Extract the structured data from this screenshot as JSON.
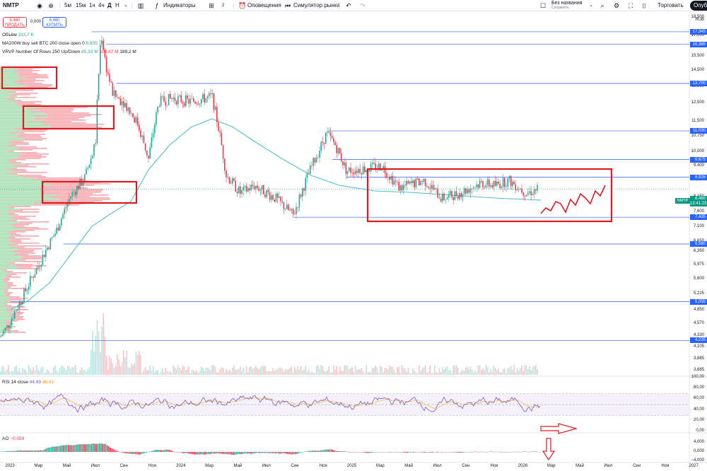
{
  "toolbar": {
    "symbol": "NMTP",
    "intervals": [
      "5м",
      "15м",
      "1ч",
      "4ч",
      "Д",
      "Н"
    ],
    "active_interval": "Д",
    "indicators_label": "Индикаторы",
    "layouts_count": "2",
    "alerts_label": "Оповещения",
    "replay_label": "Симулятор рынка",
    "layout_name": "Без названия",
    "layout_status": "Сохранить",
    "trade_label": "Торговать",
    "publish_label": "Опублик"
  },
  "trade": {
    "sell_price": "8,460",
    "sell_label": "ПРОДАТЬ",
    "spread": "0,000",
    "buy_price": "8,460",
    "buy_label": "КУПИТЬ"
  },
  "legends": {
    "volume_label": "Объём",
    "volume_value": "333,7 K",
    "ma_label": "MA200W buy sell BTC 200 close open 0",
    "ma_value": "8,605",
    "vrvp_label": "VRVP Number Of Rows 250 Up/Down",
    "vrvp_up": "85,33 M",
    "vrvp_down": "103,87 M",
    "vrvp_total": "189,2 M",
    "rsi_label": "RSI 14 close",
    "rsi_value": "44,89",
    "rsi_ma": "48,43",
    "ao_label": "AO",
    "ao_value": "−0,059"
  },
  "price_axis": {
    "currency": "RUB",
    "labels": [
      "18,500",
      "17,000",
      "15,500",
      "14,500",
      "13,500",
      "12,500",
      "11,500",
      "10,750",
      "10,000",
      "9,400",
      "8,800",
      "8,150",
      "7,600",
      "7,100",
      "6,650",
      "6,350",
      "5,975",
      "5,600",
      "5,225",
      "4,850",
      "4,570",
      "4,330",
      "4,105",
      "3,885",
      "3,685"
    ],
    "marked_levels": [
      "17,345",
      "16,385",
      "13,700",
      "11,030",
      "9,675",
      "8,926",
      "7,435",
      "6,580",
      "5,055",
      "4,235"
    ],
    "current_price": "8,460",
    "current_time": "13:41:23",
    "symbol_tag": "NMTP"
  },
  "rsi_axis": [
    "100,00",
    "80,00",
    "60,00",
    "40,00",
    "20,00",
    "0,00"
  ],
  "ao_axis": [
    "4,000",
    "0,000",
    "−4,000"
  ],
  "time_axis": [
    "2023",
    "Мар",
    "Май",
    "Июл",
    "Сен",
    "Ноя",
    "2024",
    "Мар",
    "Май",
    "Июл",
    "Сен",
    "Ноя",
    "2025",
    "Мар",
    "Май",
    "Июл",
    "Сен",
    "Ноя",
    "2026",
    "Мар",
    "Май",
    "Июл",
    "Сен",
    "Ноя",
    "2027"
  ],
  "colors": {
    "up": "#22ab94",
    "down": "#f23645",
    "ma_line": "#4fc3c7",
    "level_line": "#2962ff",
    "annotation": "#e0191f",
    "rsi_line": "#7e57c2",
    "rsi_ma": "#f6c142"
  },
  "icons": [
    "add-symbol-icon",
    "compare-icon",
    "candle-type-icon",
    "indicators-icon",
    "layouts-icon",
    "alert-icon",
    "replay-icon",
    "undo-icon",
    "redo-icon",
    "search-icon",
    "settings-icon",
    "fullscreen-icon",
    "camera-icon"
  ]
}
